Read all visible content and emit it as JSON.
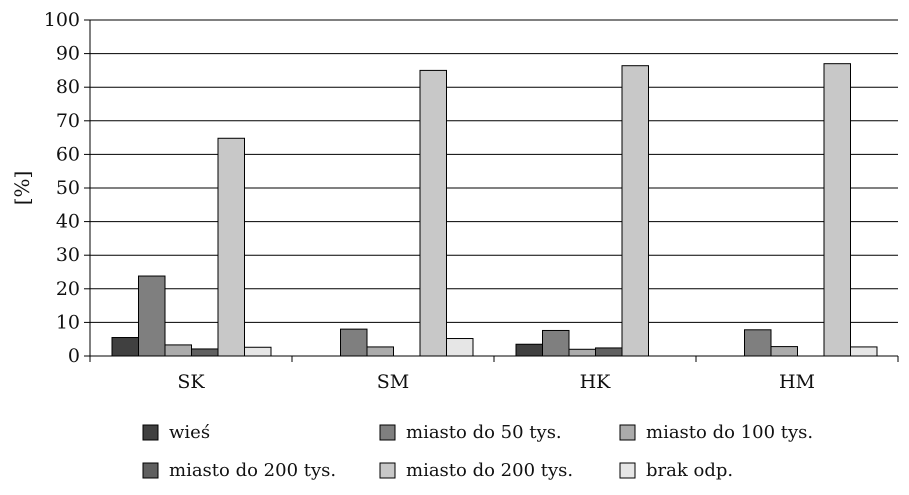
{
  "chart_data": {
    "type": "bar",
    "title": "",
    "xlabel": "",
    "ylabel": "[%]",
    "ylim": [
      0,
      100
    ],
    "yticks": [
      0,
      10,
      20,
      30,
      40,
      50,
      60,
      70,
      80,
      90,
      100
    ],
    "grid": true,
    "legend_position": "bottom",
    "categories": [
      "SK",
      "SM",
      "HK",
      "HM"
    ],
    "series": [
      {
        "name": "wieś",
        "color": "#404040",
        "values": [
          5.5,
          0,
          3.5,
          0
        ]
      },
      {
        "name": "miasto do 50 tys.",
        "color": "#7f7f7f",
        "values": [
          23.8,
          8,
          7.6,
          7.8
        ]
      },
      {
        "name": "miasto do 100 tys.",
        "color": "#ababab",
        "values": [
          3.3,
          2.7,
          2,
          2.8
        ]
      },
      {
        "name": "miasto do 200 tys.",
        "color": "#606060",
        "values": [
          2.1,
          0,
          2.4,
          0
        ]
      },
      {
        "name": "miasto do 200 tys.",
        "color": "#c8c8c8",
        "values": [
          64.8,
          85,
          86.4,
          87
        ]
      },
      {
        "name": "brak odp.",
        "color": "#e6e6e6",
        "values": [
          2.6,
          5.2,
          0,
          2.7
        ]
      }
    ]
  }
}
